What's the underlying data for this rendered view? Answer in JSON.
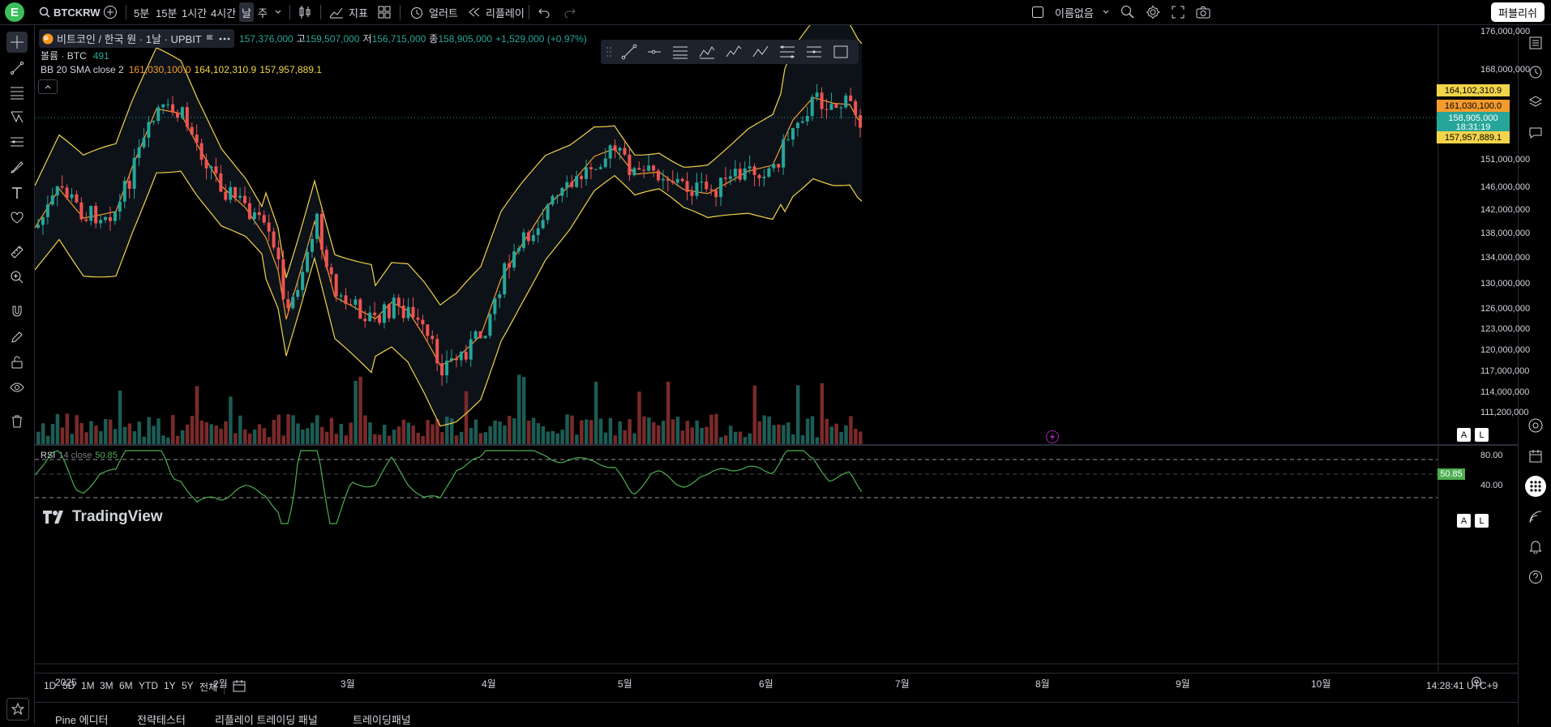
{
  "topbar": {
    "logo_letter": "E",
    "symbol": "BTCKRW",
    "intervals": [
      "5분",
      "15분",
      "1시간",
      "4시간",
      "날",
      "주"
    ],
    "active_interval": "날",
    "indicators_label": "지표",
    "alert_label": "얼러트",
    "replay_label": "리플레이",
    "layout_name": "이름없음",
    "publish_label": "퍼블리쉬"
  },
  "legend": {
    "title": "비트코인 / 한국 원 · 1날 · UPBIT",
    "open_label": "157,376,000",
    "high_prefix": "고",
    "high": "159,507,000",
    "low_prefix": "저",
    "low": "156,715,000",
    "close_prefix": "종",
    "close": "158,905,000",
    "change": "+1,529,000 (+0.97%)",
    "volume_name": "볼륨 · BTC",
    "volume_value": "491",
    "bb_name": "BB 20 SMA close 2",
    "bb_basis": "161,030,100.0",
    "bb_upper": "164,102,310.9",
    "bb_lower": "157,957,889.1"
  },
  "price_labels": {
    "upper": "164,102,310.9",
    "basis": "161,030,100.0",
    "last": "158,905,000",
    "countdown": "18:31:19",
    "lower": "157,957,889.1"
  },
  "y_axis_ticks": [
    "176,000,000",
    "168,000,000",
    "151,000,000",
    "146,000,000",
    "142,000,000",
    "138,000,000",
    "134,000,000",
    "130,000,000",
    "126,000,000",
    "123,000,000",
    "120,000,000",
    "117,000,000",
    "114,000,000",
    "111,200,000"
  ],
  "rsi": {
    "label": "RSI",
    "params": "14 close",
    "value": "50.85",
    "upper": "80.00",
    "lower": "40.00"
  },
  "brand": "TradingView",
  "x_axis_labels": [
    "2025",
    "2월",
    "3월",
    "4월",
    "5월",
    "6월",
    "7월",
    "8월",
    "9월",
    "10월"
  ],
  "range_buttons": [
    "1D",
    "5D",
    "1M",
    "3M",
    "6M",
    "YTD",
    "1Y",
    "5Y",
    "전체"
  ],
  "clock": "14:28:41 UTC+9",
  "bottom_tabs": [
    "Pine 에디터",
    "전략테스터",
    "리플레이 트레이딩 패널",
    "트레이딩패널"
  ],
  "colors": {
    "up": "#26a69a",
    "down": "#ef5350",
    "bb_band": "#f2d44a",
    "bb_basis": "#f59b2d",
    "rsi_line": "#4caf50",
    "last_price": "#26a69a"
  },
  "chart_data": {
    "type": "candlestick",
    "price_range": [
      111200000,
      176000000
    ],
    "bb_upper_label": "164,102,310.9",
    "bb_lower_label": "157,957,889.1",
    "last_close": 158905000
  }
}
